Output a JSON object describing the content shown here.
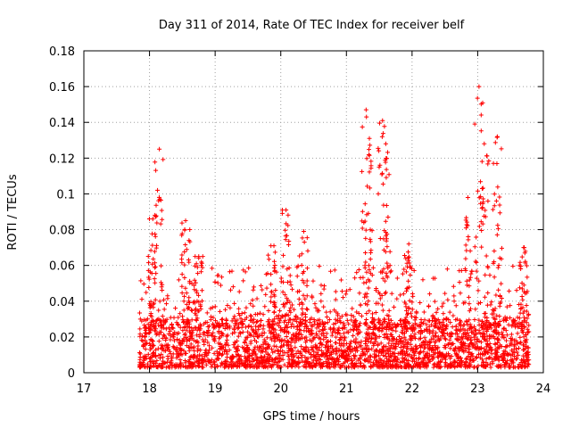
{
  "chart_data": {
    "type": "scatter",
    "title": "Day 311 of 2014, Rate Of TEC Index for receiver belf",
    "xlabel": "GPS time / hours",
    "ylabel": "ROTI / TECUs",
    "xlim": [
      17,
      24
    ],
    "ylim": [
      0,
      0.18
    ],
    "x_ticks": [
      "17",
      "18",
      "19",
      "20",
      "21",
      "22",
      "23",
      "24"
    ],
    "y_ticks": [
      "0",
      "0.02",
      "0.04",
      "0.06",
      "0.08",
      "0.1",
      "0.12",
      "0.14",
      "0.16",
      "0.18"
    ],
    "grid": true,
    "marker": "+",
    "color": "#ff0000",
    "x_range_of_data": [
      17.85,
      23.78
    ],
    "baseline_band": [
      0.003,
      0.03
    ],
    "peaks": [
      {
        "x": 18.15,
        "y": 0.125,
        "note": "cluster 18.0-18.2 rising to 0.125"
      },
      {
        "x": 18.05,
        "y": 0.086
      },
      {
        "x": 18.55,
        "y": 0.085
      },
      {
        "x": 18.75,
        "y": 0.065
      },
      {
        "x": 19.85,
        "y": 0.071
      },
      {
        "x": 20.08,
        "y": 0.091
      },
      {
        "x": 20.35,
        "y": 0.079
      },
      {
        "x": 21.3,
        "y": 0.147
      },
      {
        "x": 21.35,
        "y": 0.131
      },
      {
        "x": 21.55,
        "y": 0.141
      },
      {
        "x": 21.6,
        "y": 0.128
      },
      {
        "x": 21.95,
        "y": 0.072
      },
      {
        "x": 22.85,
        "y": 0.098
      },
      {
        "x": 23.02,
        "y": 0.16
      },
      {
        "x": 23.1,
        "y": 0.128
      },
      {
        "x": 23.3,
        "y": 0.132
      },
      {
        "x": 23.7,
        "y": 0.07
      }
    ]
  }
}
